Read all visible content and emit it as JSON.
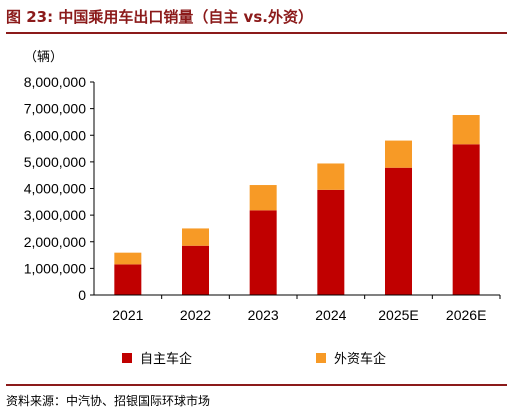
{
  "header": {
    "title": "图 23: 中国乘用车出口销量（自主 vs.外资）"
  },
  "footer": {
    "source": "资料来源：中汽协、招银国际环球市场"
  },
  "colors": {
    "domestic": "#c00000",
    "foreign": "#f79a26",
    "rule": "#8b1a1a"
  },
  "chart_data": {
    "type": "bar",
    "stacked": true,
    "unit_label": "（辆）",
    "categories": [
      "2021",
      "2022",
      "2023",
      "2024",
      "2025E",
      "2026E"
    ],
    "series": [
      {
        "name": "自主车企",
        "values": [
          1150000,
          1850000,
          3180000,
          3950000,
          4780000,
          5660000
        ]
      },
      {
        "name": "外资车企",
        "values": [
          440000,
          650000,
          950000,
          990000,
          1020000,
          1100000
        ]
      }
    ],
    "ylim": [
      0,
      8000000
    ],
    "yticks": [
      "0",
      "1,000,000",
      "2,000,000",
      "3,000,000",
      "4,000,000",
      "5,000,000",
      "6,000,000",
      "7,000,000",
      "8,000,000"
    ],
    "legend_position": "bottom",
    "grid": false
  }
}
